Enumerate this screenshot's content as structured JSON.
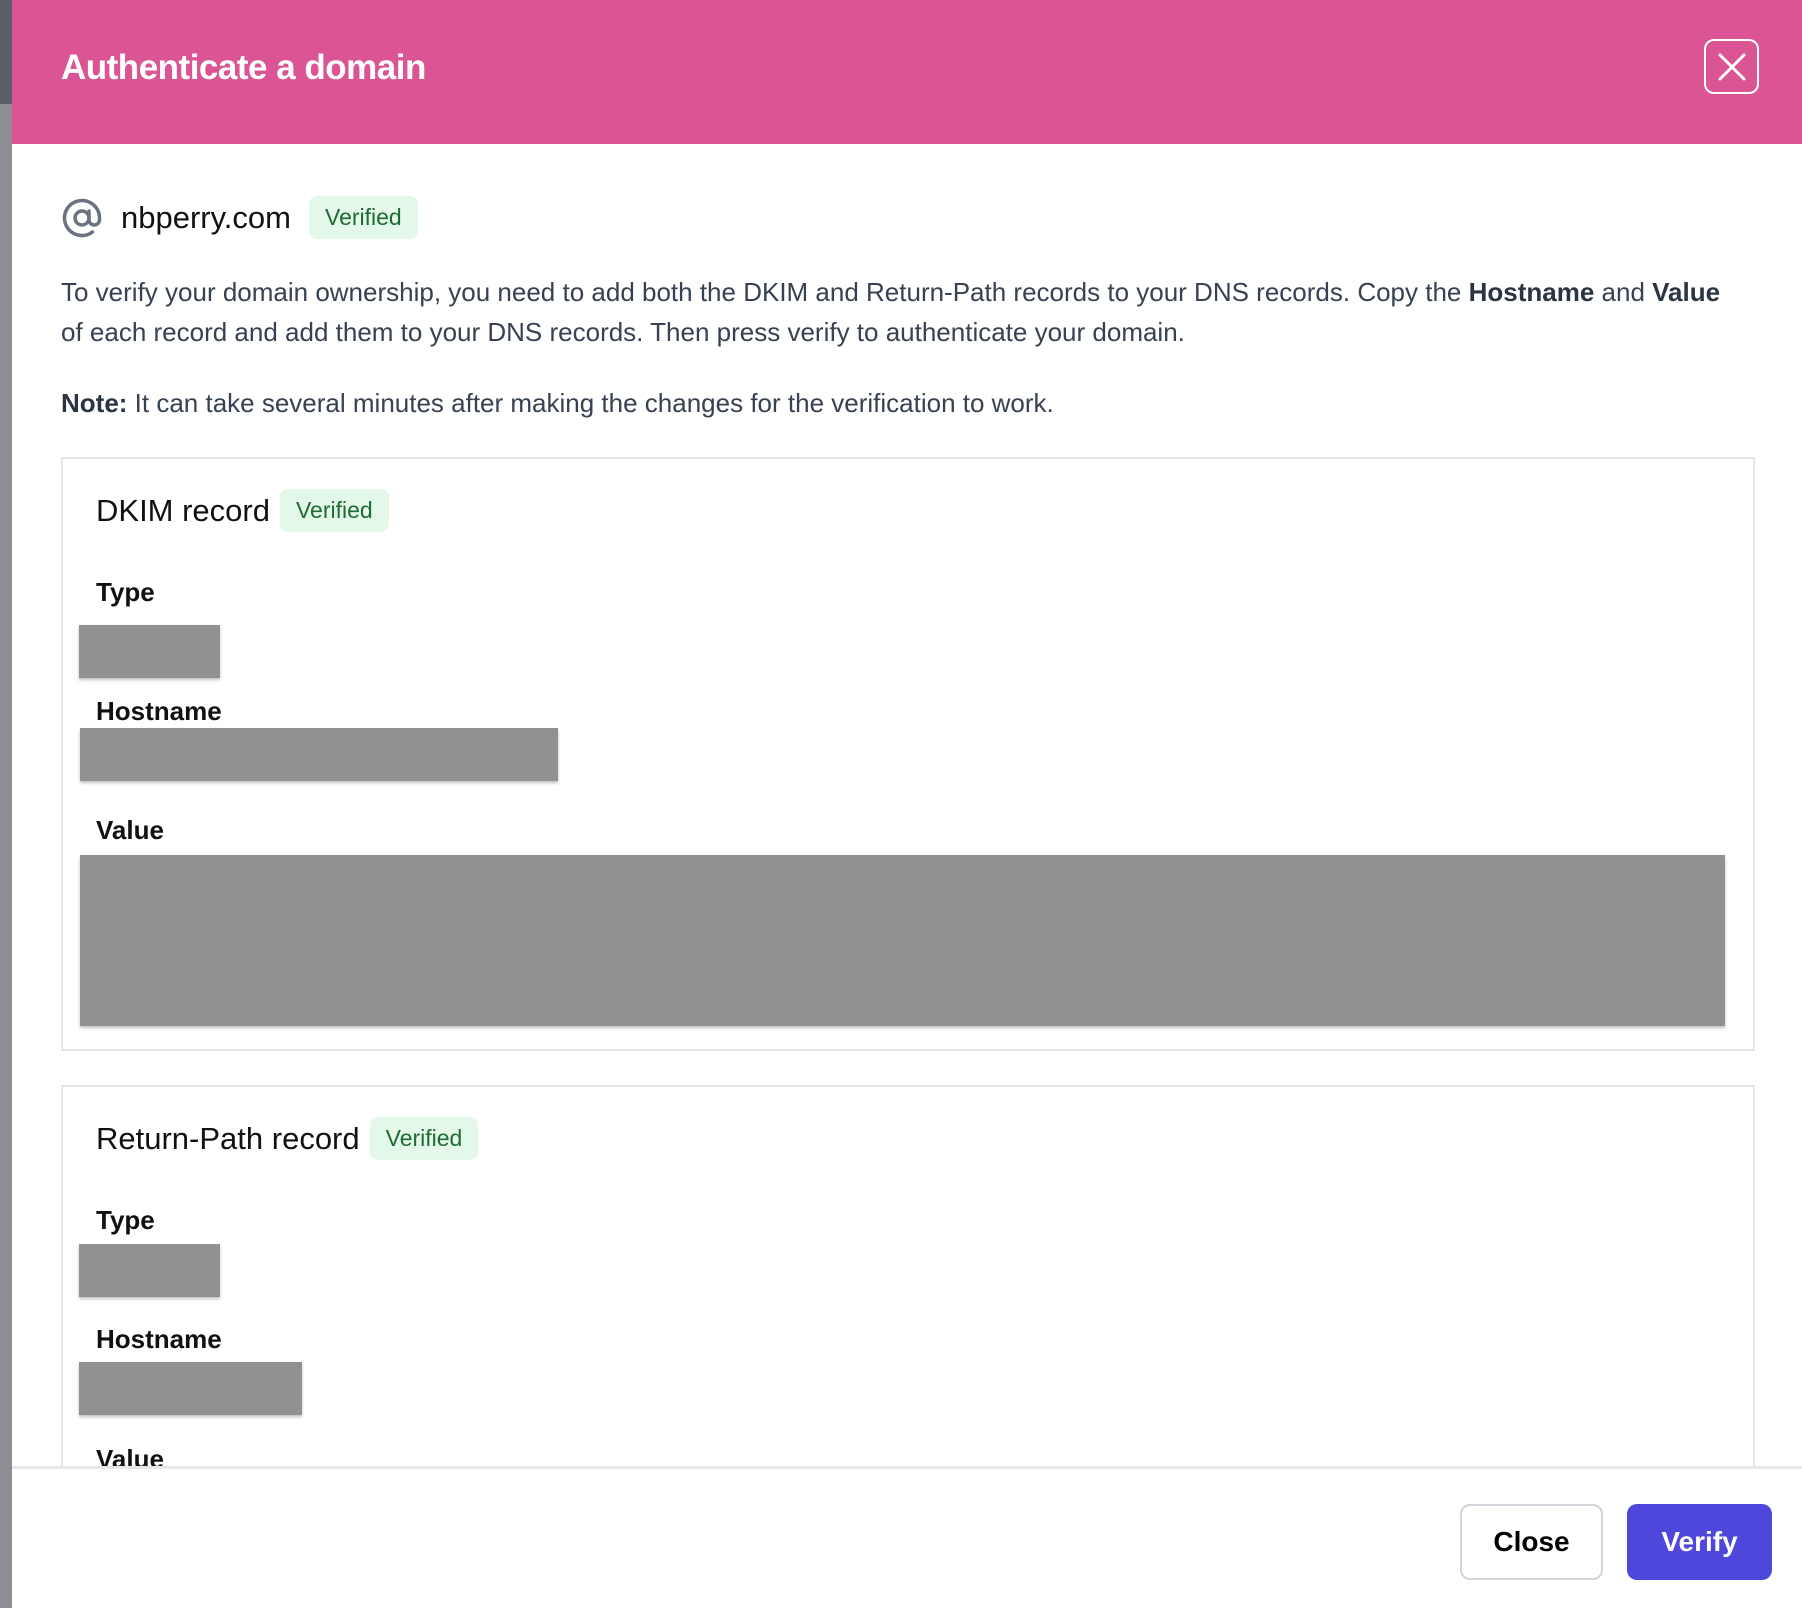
{
  "header": {
    "title": "Authenticate a domain",
    "close_icon": "close-icon"
  },
  "domain": {
    "name": "nbperry.com",
    "status": "Verified",
    "icon": "at-icon"
  },
  "intro": {
    "p1": "To verify your domain ownership, you need to add both the DKIM and Return-Path records to your DNS records. Copy the ",
    "b1": "Hostname",
    "p2": " and ",
    "b2": "Value",
    "p3": " of each record and add them to your DNS records. Then press verify to authenticate your domain."
  },
  "note": {
    "label": "Note:",
    "text": " It can take several minutes after making the changes for the verification to work."
  },
  "records": [
    {
      "title": "DKIM record",
      "status": "Verified",
      "type_label": "Type",
      "hostname_label": "Hostname",
      "value_label": "Value"
    },
    {
      "title": "Return-Path record",
      "status": "Verified",
      "type_label": "Type",
      "hostname_label": "Hostname",
      "value_label": "Value"
    }
  ],
  "footer": {
    "close": "Close",
    "verify": "Verify"
  },
  "colors": {
    "header": "#db5494",
    "primary": "#4f46dc",
    "badge_bg": "#e3f8e8",
    "badge_text": "#1f6b34"
  }
}
